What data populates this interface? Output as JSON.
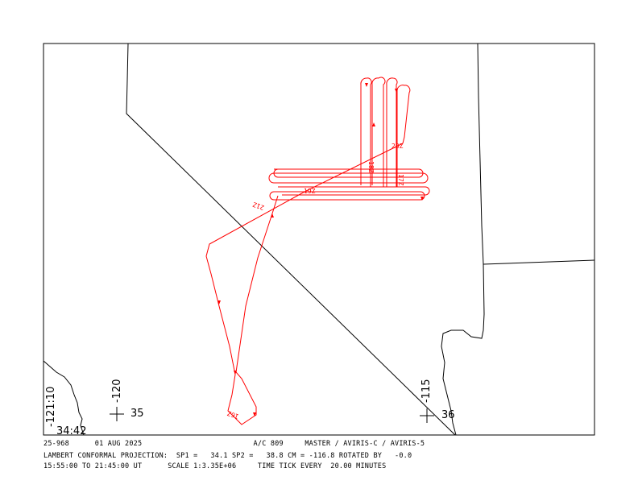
{
  "colors": {
    "track": "#ff0000",
    "borders": "#000000",
    "frame": "#000000"
  },
  "map": {
    "corner_labels": {
      "lon_left": "-121:10",
      "lat_bottom": "34:42"
    },
    "grid_ticks": [
      {
        "lon": "-120",
        "lat": "35"
      },
      {
        "lon": "-115",
        "lat": "36"
      }
    ],
    "time_labels": [
      "16Z",
      "17Z",
      "18Z",
      "19Z",
      "20Z",
      "21Z"
    ]
  },
  "footer": {
    "line1": "25-968      01 AUG 2025                          A/C 809     MASTER / AVIRIS-C / AVIRIS-5",
    "line2": "LAMBERT CONFORMAL PROJECTION:  SP1 =   34.1 SP2 =   38.8 CM = -116.8 ROTATED BY   -0.0",
    "line3": "15:55:00 TO 21:45:00 UT      SCALE 1:3.35E+06     TIME TICK EVERY  20.00 MINUTES"
  }
}
